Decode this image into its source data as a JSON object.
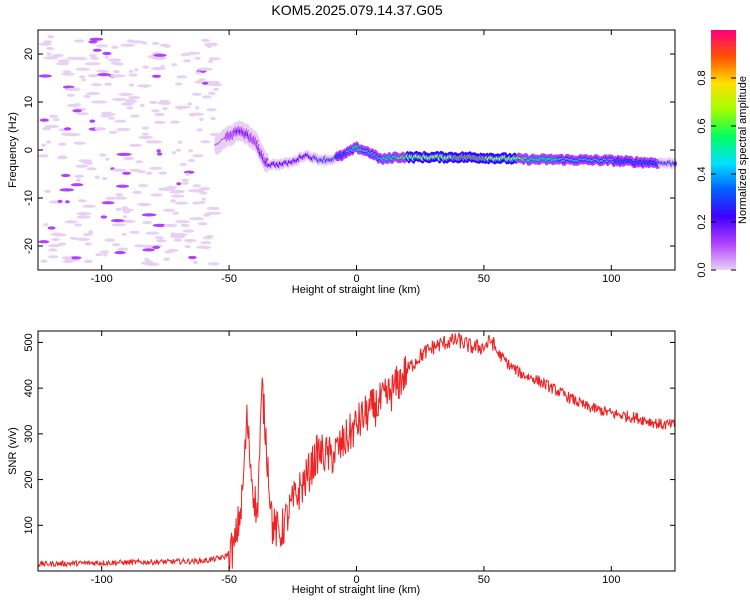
{
  "title": "KOM5.2025.079.14.37.G05",
  "chart_data": [
    {
      "type": "heatmap",
      "xlabel": "Height of straight line (km)",
      "ylabel": "Frequency (Hz)",
      "xlim": [
        -125,
        125
      ],
      "ylim": [
        -25,
        25
      ],
      "xticks": [
        -100,
        -50,
        0,
        50,
        100
      ],
      "yticks": [
        -20,
        -10,
        0,
        10,
        20
      ],
      "colorbar": {
        "label": "Normalized spectral amplitude",
        "range": [
          0,
          1
        ],
        "ticks": [
          "0.0",
          "0.2",
          "0.4",
          "0.6",
          "0.8"
        ],
        "ticks_values": [
          0,
          0.2,
          0.4,
          0.6,
          0.8
        ],
        "colormap": [
          "#e8d0f4",
          "#b040ff",
          "#4000ff",
          "#0060ff",
          "#00e0ff",
          "#00ff60",
          "#a0ff00",
          "#ffe000",
          "#ff5000",
          "#ff0080"
        ]
      },
      "ridge": {
        "x": [
          -55,
          -50,
          -45,
          -40,
          -35,
          -30,
          -25,
          -20,
          -15,
          -10,
          -5,
          0,
          5,
          10,
          15,
          20,
          30,
          40,
          50,
          60,
          70,
          80,
          90,
          100,
          110,
          125
        ],
        "freq": [
          1,
          3,
          4,
          2,
          -3,
          -3,
          -2.5,
          -1,
          -2,
          -2,
          -1,
          0.5,
          -0.5,
          -2,
          -1.5,
          -1.5,
          -1.5,
          -1.5,
          -1.6,
          -1.8,
          -2,
          -2,
          -2.1,
          -2.2,
          -2.5,
          -2.8
        ],
        "amplitude": [
          0.12,
          0.2,
          0.25,
          0.2,
          0.28,
          0.3,
          0.3,
          0.3,
          0.35,
          0.35,
          0.4,
          0.6,
          0.5,
          0.55,
          0.65,
          0.75,
          0.85,
          0.9,
          0.9,
          0.8,
          0.6,
          0.55,
          0.5,
          0.45,
          0.4,
          0.35
        ]
      }
    },
    {
      "type": "line",
      "xlabel": "Height of straight line (km)",
      "ylabel": "SNR (v/v)",
      "xlim": [
        -125,
        125
      ],
      "ylim": [
        0,
        525
      ],
      "xticks": [
        -100,
        -50,
        0,
        50,
        100
      ],
      "yticks": [
        100,
        200,
        300,
        400,
        500
      ],
      "series": [
        {
          "color": "#ee2222",
          "x": [
            -125,
            -100,
            -75,
            -60,
            -52,
            -48,
            -45,
            -43,
            -41,
            -39,
            -37,
            -35,
            -33,
            -30,
            -25,
            -20,
            -15,
            -10,
            -5,
            0,
            5,
            10,
            15,
            20,
            25,
            30,
            35,
            40,
            45,
            50,
            53,
            55,
            60,
            65,
            70,
            80,
            90,
            100,
            110,
            120,
            125
          ],
          "y": [
            15,
            18,
            20,
            22,
            30,
            50,
            150,
            330,
            200,
            120,
            400,
            250,
            100,
            80,
            150,
            200,
            260,
            250,
            280,
            320,
            350,
            370,
            400,
            440,
            470,
            490,
            500,
            505,
            490,
            490,
            505,
            480,
            450,
            430,
            420,
            390,
            360,
            345,
            335,
            320,
            320
          ]
        }
      ]
    }
  ]
}
